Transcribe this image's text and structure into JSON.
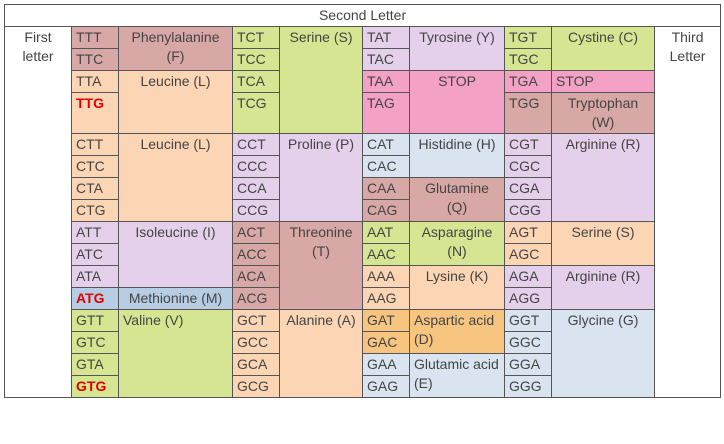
{
  "header": {
    "second_letter": "Second Letter"
  },
  "first_letter_label": "First letter",
  "third_letter_label": "Third Letter",
  "colors": {
    "pink_brown": "#d8a8a6",
    "peach": "#fcd5b4",
    "green": "#d6e592",
    "lavender": "#e5d0eb",
    "light_blue": "#d9e4f0",
    "hot_pink": "#f4a1c6",
    "blue_gray": "#b7cde3",
    "orange": "#f7c57f",
    "start_red": "#e00000"
  },
  "rows": [
    {
      "c1": "TTT",
      "c2": "TCT",
      "c3": "TAT",
      "c4": "TGT"
    },
    {
      "c1": "TTC",
      "c2": "TCC",
      "c3": "TAC",
      "c4": "TGC"
    },
    {
      "c1": "TTA",
      "c2": "TCA",
      "c3": "TAA",
      "c4": "TGA"
    },
    {
      "c1": "TTG",
      "c2": "TCG",
      "c3": "TAG",
      "c4": "TGG"
    },
    {
      "c1": "CTT",
      "c2": "CCT",
      "c3": "CAT",
      "c4": "CGT"
    },
    {
      "c1": "CTC",
      "c2": "CCC",
      "c3": "CAC",
      "c4": "CGC"
    },
    {
      "c1": "CTA",
      "c2": "CCA",
      "c3": "CAA",
      "c4": "CGA"
    },
    {
      "c1": "CTG",
      "c2": "CCG",
      "c3": "CAG",
      "c4": "CGG"
    },
    {
      "c1": "ATT",
      "c2": "ACT",
      "c3": "AAT",
      "c4": "AGT"
    },
    {
      "c1": "ATC",
      "c2": "ACC",
      "c3": "AAC",
      "c4": "AGC"
    },
    {
      "c1": "ATA",
      "c2": "ACA",
      "c3": "AAA",
      "c4": "AGA"
    },
    {
      "c1": "ATG",
      "c2": "ACG",
      "c3": "AAG",
      "c4": "AGG"
    },
    {
      "c1": "GTT",
      "c2": "GCT",
      "c3": "GAT",
      "c4": "GGT"
    },
    {
      "c1": "GTC",
      "c2": "GCC",
      "c3": "GAC",
      "c4": "GGC"
    },
    {
      "c1": "GTA",
      "c2": "GCA",
      "c3": "GAA",
      "c4": "GGA"
    },
    {
      "c1": "GTG",
      "c2": "GCG",
      "c3": "GAG",
      "c4": "GGG"
    }
  ],
  "amino_acids": {
    "phenylalanine": "Phenylalanine (F)",
    "leucine_t": "Leucine (L)",
    "serine_t": "Serine (S)",
    "tyrosine": "Tyrosine (Y)",
    "stop_a": "STOP",
    "cystine": "Cystine (C)",
    "stop_g": "STOP",
    "tryptophan": "Tryptophan (W)",
    "leucine_c": "Leucine (L)",
    "proline": "Proline (P)",
    "histidine": "Histidine (H)",
    "glutamine": "Glutamine (Q)",
    "arginine_c": "Arginine (R)",
    "isoleucine": "Isoleucine (I)",
    "methionine": "Methionine (M)",
    "threonine": "Threonine (T)",
    "asparagine": "Asparagine (N)",
    "lysine": "Lysine (K)",
    "serine_a": "Serine (S)",
    "arginine_a": "Arginine (R)",
    "valine": "Valine (V)",
    "alanine": "Alanine (A)",
    "aspartic": "Aspartic acid (D)",
    "glutamic": "Glutamic acid (E)",
    "glycine": "Glycine (G)"
  }
}
